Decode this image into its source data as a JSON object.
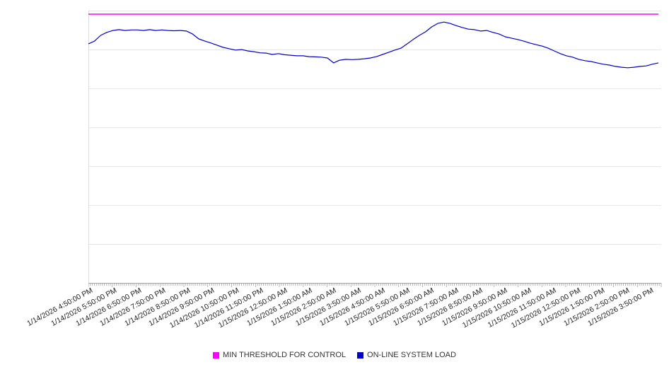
{
  "legend": [
    {
      "label": "MIN THRESHOLD FOR CONTROL",
      "color": "#ff00ff"
    },
    {
      "label": "ON-LINE SYSTEM LOAD",
      "color": "#0000cc"
    }
  ],
  "chart_data": {
    "type": "line",
    "title": "",
    "xlabel": "",
    "ylabel": "",
    "ylim": [
      0,
      100
    ],
    "grid": "horizontal",
    "legend_position": "bottom",
    "y_axis_tick_labels_visible": false,
    "categories": [
      "1/14/2026 4:50:00 PM",
      "1/14/2026 5:50:00 PM",
      "1/14/2026 6:50:00 PM",
      "1/14/2026 7:50:00 PM",
      "1/14/2026 8:50:00 PM",
      "1/14/2026 9:50:00 PM",
      "1/14/2026 10:50:00 PM",
      "1/14/2026 11:50:00 PM",
      "1/15/2026 12:50:00 AM",
      "1/15/2026 1:50:00 AM",
      "1/15/2026 2:50:00 AM",
      "1/15/2026 3:50:00 AM",
      "1/15/2026 4:50:00 AM",
      "1/15/2026 5:50:00 AM",
      "1/15/2026 6:50:00 AM",
      "1/15/2026 7:50:00 AM",
      "1/15/2026 8:50:00 AM",
      "1/15/2026 9:50:00 AM",
      "1/15/2026 10:50:00 AM",
      "1/15/2026 11:50:00 AM",
      "1/15/2026 12:50:00 PM",
      "1/15/2026 1:50:00 PM",
      "1/15/2026 2:50:00 PM",
      "1/15/2026 3:50:00 PM"
    ],
    "series": [
      {
        "name": "MIN THRESHOLD FOR CONTROL",
        "color": "#ff00ff",
        "values": [
          98.7,
          98.7
        ]
      },
      {
        "name": "ON-LINE SYSTEM LOAD",
        "color": "#0000cc",
        "values": [
          87.8,
          88.8,
          90.9,
          92.0,
          92.7,
          93.0,
          92.7,
          92.9,
          92.9,
          92.7,
          93.0,
          92.7,
          92.9,
          92.7,
          92.6,
          92.7,
          92.5,
          91.4,
          89.6,
          88.8,
          88.1,
          87.3,
          86.5,
          86.0,
          85.5,
          85.7,
          85.2,
          84.9,
          84.5,
          84.4,
          83.9,
          84.2,
          83.8,
          83.6,
          83.4,
          83.4,
          83.1,
          83.0,
          82.9,
          82.6,
          80.8,
          81.8,
          82.1,
          82.0,
          82.1,
          82.3,
          82.6,
          83.1,
          83.9,
          84.7,
          85.5,
          86.2,
          87.8,
          89.4,
          90.9,
          92.2,
          94.0,
          95.3,
          95.8,
          95.3,
          94.5,
          93.8,
          93.2,
          93.0,
          92.5,
          92.7,
          92.0,
          91.4,
          90.4,
          89.9,
          89.4,
          88.8,
          88.1,
          87.5,
          87.0,
          86.2,
          85.2,
          84.2,
          83.4,
          82.9,
          82.1,
          81.6,
          81.3,
          80.8,
          80.3,
          80.0,
          79.5,
          79.2,
          79.0,
          79.2,
          79.5,
          79.7,
          80.3,
          80.8
        ]
      }
    ]
  }
}
